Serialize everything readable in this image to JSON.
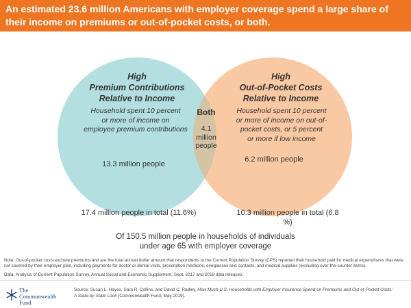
{
  "header": {
    "title": "An estimated 23.6 million Americans with employer coverage spend a large share of their income on premiums or out-of-pocket costs, or both."
  },
  "colors": {
    "header_bg": "#ee7622",
    "left_circle": "#b3dfe0",
    "right_circle": "#f9c9a3",
    "overlap": "#d4c3a4",
    "logo": "#1f3c74"
  },
  "left_circle": {
    "title_line1": "High",
    "title_line2": "Premium Contributions",
    "title_line3": "Relative to Income",
    "desc_line1": "Household spent 10 percent",
    "desc_line2": "or more of income on",
    "desc_line3": "employee premium contributions",
    "count": "13.3 million people",
    "total": "17.4 million people in total (11.6%)"
  },
  "right_circle": {
    "title_line1": "High",
    "title_line2": "Out-of-Pocket Costs",
    "title_line3": "Relative to Income",
    "desc_line1": "Household spent 10 percent",
    "desc_line2": "or more of income on out-of-",
    "desc_line3": "pocket costs, or 5 percent",
    "desc_line4": "or more if low income",
    "count": "6.2 million people",
    "total_line1": "10.3 million people in total (6.8",
    "total_line2": "%)"
  },
  "overlap": {
    "title": "Both",
    "line1": "4.1",
    "line2": "million",
    "line3": "people"
  },
  "universe": {
    "line1": "Of 150.5 million people in households of individuals",
    "line2": "under age 65 with employer coverage"
  },
  "notes": {
    "note": "Note: Out-of-pocket costs exclude premiums and are the total annual dollar amount that respondents to the Current Population Survey (CPS) reported their household paid for medical expenditures that were not covered by their employer plan, including payments for doctor or dental visits, prescription medicine, eyeglasses and contacts, and medical supplies (excluding over-the-counter items).",
    "data": "Data: Analysis of Current Population Survey, Annual Social and Economic Supplement, Sept. 2017 and 2018 data releases."
  },
  "source": {
    "prefix": "Source: Susan L. Hayes, Sara R. Collins, and David C. Radley, ",
    "italic": "How Much U.S. Households with Employer Insurance Spend on Premiums and Out-of-Pocket Costs: A State-by-State Look",
    "suffix": " (Commonwealth Fund, May 2019)."
  },
  "logo": {
    "line1": "The",
    "line2": "Commonwealth",
    "line3": "Fund"
  }
}
